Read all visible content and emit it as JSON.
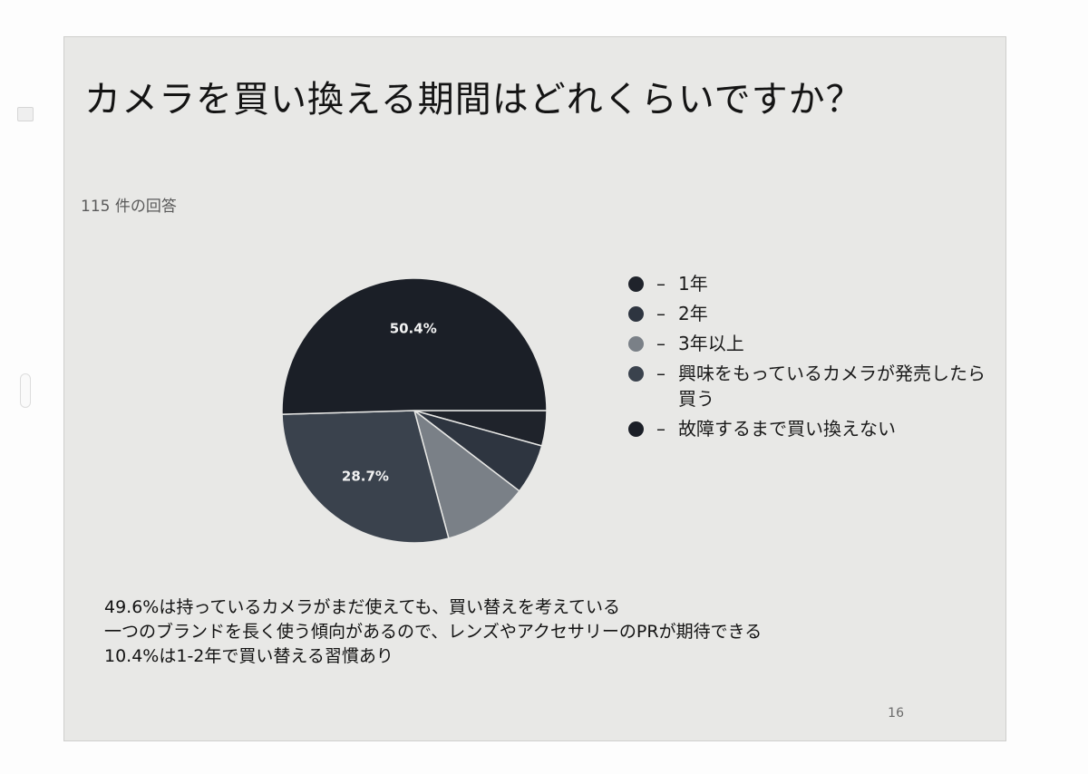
{
  "slide": {
    "title": "カメラを買い換える期間はどれくらいですか？",
    "response_count": "115 件の回答",
    "page_number": "16",
    "notes": [
      "49.6%は持っているカメラがまだ使えても、買い替えを考えている",
      "一つのブランドを長く使う傾向があるので、レンズやアクセサリーのPRが期待できる",
      "10.4%は1-2年で買い替える習慣あり"
    ]
  },
  "chart_data": {
    "type": "pie",
    "title": "",
    "categories": [
      "1年",
      "2年",
      "3年以上",
      "興味をもっているカメラが発売したら買う",
      "故障するまで買い換えない"
    ],
    "values": [
      4.3,
      6.1,
      10.4,
      28.7,
      50.4
    ],
    "value_labels": [
      "",
      "",
      "",
      "28.7%",
      "50.4%"
    ],
    "unit": "%",
    "colors": [
      "#1f232b",
      "#2e3540",
      "#7a8087",
      "#3a424d",
      "#1b1f27"
    ],
    "legend_position": "right",
    "legend_dash": "–"
  }
}
